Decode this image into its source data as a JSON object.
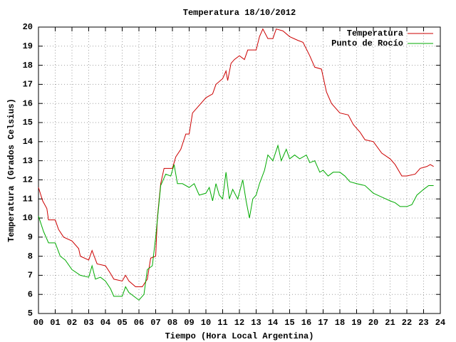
{
  "chart_data": {
    "type": "line",
    "title": "Temperatura 18/10/2012",
    "xlabel": "Tiempo (Hora Local Argentina)",
    "ylabel": "Temperatura (Grados Celsius)",
    "xlim": [
      0,
      24
    ],
    "ylim": [
      5,
      20
    ],
    "xticks": [
      {
        "value": 0,
        "label": "00"
      },
      {
        "value": 1,
        "label": "01"
      },
      {
        "value": 2,
        "label": "02"
      },
      {
        "value": 3,
        "label": "03"
      },
      {
        "value": 4,
        "label": "04"
      },
      {
        "value": 5,
        "label": "05"
      },
      {
        "value": 6,
        "label": "06"
      },
      {
        "value": 7,
        "label": "07"
      },
      {
        "value": 8,
        "label": "08"
      },
      {
        "value": 9,
        "label": "09"
      },
      10,
      11,
      12,
      13,
      14,
      15,
      16,
      17,
      18,
      19,
      20,
      21,
      22,
      23,
      24
    ],
    "yticks": [
      5,
      6,
      7,
      8,
      9,
      10,
      11,
      12,
      13,
      14,
      15,
      16,
      17,
      18,
      19,
      20
    ],
    "grid": true,
    "legend": "top-right",
    "series": [
      {
        "name": "Temperatura",
        "color": "#cc0000",
        "x": [
          0,
          0.25,
          0.5,
          0.6,
          1.0,
          1.2,
          1.5,
          2.0,
          2.4,
          2.5,
          3.0,
          3.2,
          3.5,
          4.0,
          4.3,
          4.5,
          5.0,
          5.2,
          5.4,
          5.8,
          6.2,
          6.5,
          6.7,
          7.0,
          7.1,
          7.3,
          7.5,
          8.0,
          8.2,
          8.5,
          8.8,
          9.0,
          9.2,
          9.5,
          10.0,
          10.4,
          10.6,
          11.0,
          11.2,
          11.3,
          11.5,
          11.7,
          12.0,
          12.3,
          12.5,
          13.0,
          13.2,
          13.4,
          13.7,
          14.0,
          14.2,
          14.6,
          15.0,
          15.5,
          15.8,
          16.2,
          16.5,
          16.9,
          17.2,
          17.5,
          18.0,
          18.5,
          18.8,
          19.2,
          19.5,
          20.0,
          20.5,
          21.0,
          21.3,
          21.7,
          22.0,
          22.5,
          22.8,
          23.2,
          23.4,
          23.6
        ],
        "values": [
          11.6,
          10.9,
          10.5,
          9.9,
          9.9,
          9.4,
          9.0,
          8.8,
          8.4,
          8.0,
          7.8,
          8.3,
          7.6,
          7.5,
          7.1,
          6.8,
          6.7,
          7.0,
          6.7,
          6.4,
          6.4,
          6.8,
          7.9,
          8.0,
          10.0,
          11.8,
          12.6,
          12.6,
          13.2,
          13.6,
          14.4,
          14.4,
          15.5,
          15.8,
          16.3,
          16.5,
          17.0,
          17.3,
          17.7,
          17.2,
          18.1,
          18.3,
          18.5,
          18.3,
          18.8,
          18.8,
          19.5,
          19.9,
          19.4,
          19.4,
          19.9,
          19.8,
          19.5,
          19.3,
          19.2,
          18.5,
          17.9,
          17.8,
          16.6,
          16.0,
          15.5,
          15.4,
          14.9,
          14.5,
          14.1,
          14.0,
          13.4,
          13.1,
          12.8,
          12.2,
          12.2,
          12.3,
          12.6,
          12.7,
          12.8,
          12.7
        ]
      },
      {
        "name": "Punto de Rocío",
        "color": "#00aa00",
        "x": [
          0,
          0.3,
          0.6,
          1.0,
          1.3,
          1.6,
          2.0,
          2.5,
          3.0,
          3.2,
          3.4,
          3.7,
          4.0,
          4.3,
          4.5,
          5.0,
          5.2,
          5.4,
          5.7,
          6.0,
          6.3,
          6.5,
          6.8,
          7.0,
          7.3,
          7.6,
          7.9,
          8.1,
          8.3,
          8.6,
          9.0,
          9.3,
          9.6,
          10.0,
          10.2,
          10.4,
          10.6,
          10.8,
          11.0,
          11.2,
          11.4,
          11.6,
          11.9,
          12.2,
          12.4,
          12.6,
          12.8,
          13.0,
          13.2,
          13.5,
          13.7,
          14.0,
          14.3,
          14.5,
          14.8,
          15.0,
          15.3,
          15.6,
          16.0,
          16.2,
          16.5,
          16.8,
          17.0,
          17.3,
          17.6,
          18.0,
          18.3,
          18.6,
          19.0,
          19.5,
          20.0,
          20.5,
          21.0,
          21.3,
          21.6,
          22.0,
          22.3,
          22.6,
          23.0,
          23.3,
          23.6
        ],
        "values": [
          10.1,
          9.3,
          8.7,
          8.7,
          8.0,
          7.8,
          7.3,
          7.0,
          6.9,
          7.5,
          6.8,
          6.9,
          6.7,
          6.3,
          5.9,
          5.9,
          6.4,
          6.1,
          5.9,
          5.7,
          6.0,
          7.3,
          7.5,
          9.0,
          11.7,
          12.3,
          12.2,
          12.8,
          11.8,
          11.8,
          11.6,
          11.8,
          11.2,
          11.3,
          11.6,
          10.9,
          11.8,
          11.2,
          11.0,
          12.4,
          11.0,
          11.5,
          11.0,
          12.0,
          10.9,
          10.0,
          11.0,
          11.2,
          11.8,
          12.5,
          13.3,
          13.0,
          13.8,
          13.0,
          13.6,
          13.1,
          13.3,
          13.1,
          13.3,
          12.9,
          13.0,
          12.4,
          12.5,
          12.2,
          12.4,
          12.4,
          12.2,
          11.9,
          11.8,
          11.7,
          11.3,
          11.1,
          10.9,
          10.8,
          10.6,
          10.6,
          10.7,
          11.2,
          11.5,
          11.7,
          11.7
        ]
      }
    ]
  }
}
